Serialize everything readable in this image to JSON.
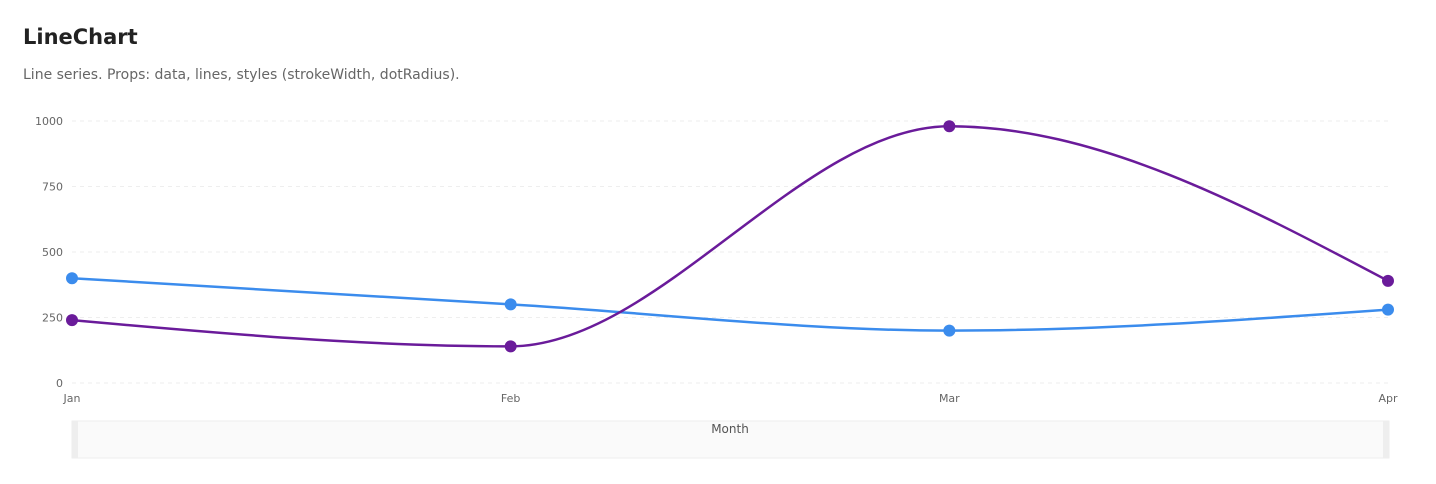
{
  "header": {
    "title": "LineChart",
    "subtitle": "Line series. Props: data, lines, styles (strokeWidth, dotRadius)."
  },
  "chart_data": {
    "type": "line",
    "categories": [
      "Jan",
      "Feb",
      "Mar",
      "Apr"
    ],
    "series": [
      {
        "values": [
          400,
          300,
          200,
          280
        ],
        "color": "#3b8ced"
      },
      {
        "values": [
          240,
          140,
          980,
          390
        ],
        "color": "#6a1b9a"
      }
    ],
    "ylim": [
      0,
      1000
    ],
    "yticks": [
      "0",
      "250",
      "500",
      "750",
      "1000"
    ],
    "xlabel": "Month",
    "grid": "horizontal dashed",
    "curve": "smooth"
  }
}
